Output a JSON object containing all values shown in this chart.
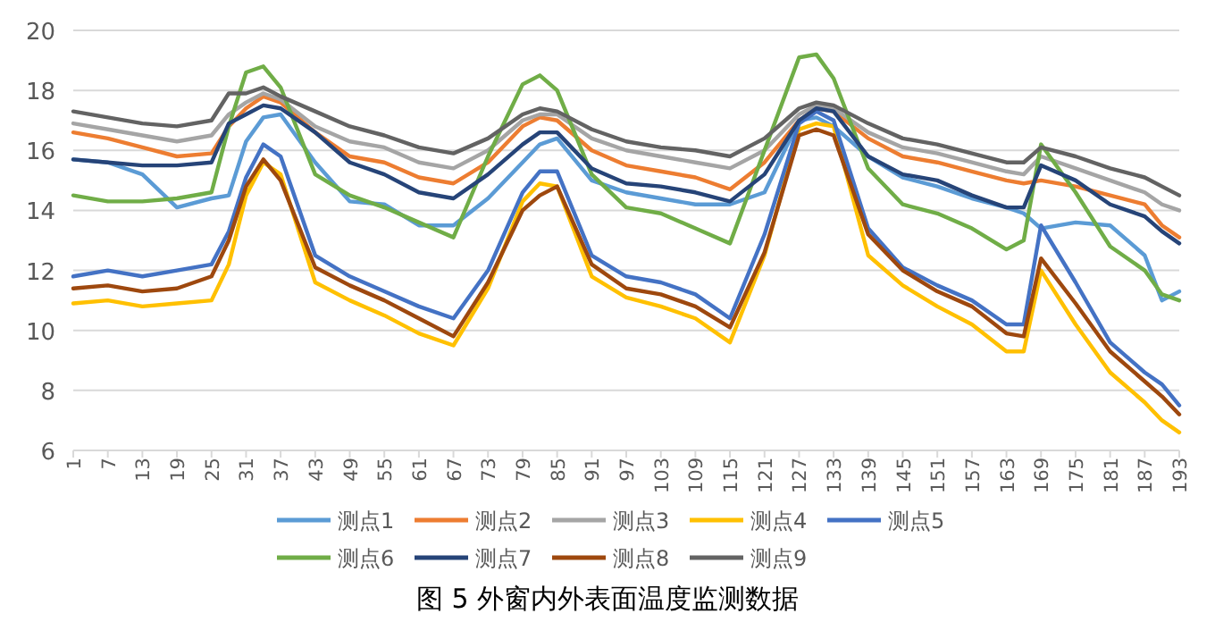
{
  "chart_data": {
    "type": "line",
    "title": "图 5   外窗内外表面温度监测数据",
    "x": [
      1,
      7,
      13,
      19,
      25,
      28,
      31,
      34,
      37,
      43,
      49,
      55,
      61,
      67,
      73,
      79,
      82,
      85,
      91,
      97,
      103,
      109,
      115,
      121,
      127,
      130,
      133,
      139,
      145,
      151,
      157,
      163,
      166,
      169,
      175,
      181,
      187,
      190,
      193
    ],
    "xlim": [
      1,
      193
    ],
    "xticks": [
      1,
      7,
      13,
      19,
      25,
      31,
      37,
      43,
      49,
      55,
      61,
      67,
      73,
      79,
      85,
      91,
      97,
      103,
      109,
      115,
      121,
      127,
      133,
      139,
      145,
      151,
      157,
      163,
      169,
      175,
      181,
      187,
      193
    ],
    "ylim": [
      6,
      20
    ],
    "yticks": [
      6,
      8,
      10,
      12,
      14,
      16,
      18,
      20
    ],
    "grid": "y",
    "legend": "bottom",
    "marker": "none",
    "line_style": "solid",
    "series": [
      {
        "name": "测点1",
        "color": "#5b9bd5",
        "values": [
          15.7,
          15.6,
          15.2,
          14.1,
          14.4,
          14.5,
          16.3,
          17.1,
          17.2,
          15.6,
          14.3,
          14.2,
          13.5,
          13.5,
          14.4,
          15.6,
          16.2,
          16.4,
          15.0,
          14.6,
          14.4,
          14.2,
          14.2,
          14.6,
          17.0,
          17.1,
          16.8,
          15.8,
          15.1,
          14.8,
          14.4,
          14.1,
          13.9,
          13.4,
          13.6,
          13.5,
          12.5,
          11.0,
          11.3
        ]
      },
      {
        "name": "测点2",
        "color": "#ed7d31",
        "values": [
          16.6,
          16.4,
          16.1,
          15.8,
          15.9,
          16.8,
          17.4,
          17.8,
          17.6,
          16.6,
          15.8,
          15.6,
          15.1,
          14.9,
          15.6,
          16.8,
          17.1,
          17.0,
          16.0,
          15.5,
          15.3,
          15.1,
          14.7,
          15.6,
          17.0,
          17.4,
          17.3,
          16.4,
          15.8,
          15.6,
          15.3,
          15.0,
          14.9,
          15.0,
          14.8,
          14.5,
          14.2,
          13.5,
          13.1
        ]
      },
      {
        "name": "测点3",
        "color": "#a5a5a5",
        "values": [
          16.9,
          16.7,
          16.5,
          16.3,
          16.5,
          17.2,
          17.6,
          17.9,
          17.7,
          16.8,
          16.3,
          16.1,
          15.6,
          15.4,
          16.0,
          17.0,
          17.2,
          17.2,
          16.4,
          16.0,
          15.8,
          15.6,
          15.4,
          16.0,
          17.2,
          17.5,
          17.4,
          16.6,
          16.1,
          15.9,
          15.6,
          15.3,
          15.2,
          15.8,
          15.4,
          15.0,
          14.6,
          14.2,
          14.0
        ]
      },
      {
        "name": "测点4",
        "color": "#ffc000",
        "values": [
          10.9,
          11.0,
          10.8,
          10.9,
          11.0,
          12.2,
          14.5,
          15.6,
          15.2,
          11.6,
          11.0,
          10.5,
          9.9,
          9.5,
          11.4,
          14.3,
          14.9,
          14.8,
          11.8,
          11.1,
          10.8,
          10.4,
          9.6,
          12.5,
          16.7,
          16.9,
          16.8,
          12.5,
          11.5,
          10.8,
          10.2,
          9.3,
          9.3,
          12.0,
          10.2,
          8.6,
          7.6,
          7.0,
          6.6
        ]
      },
      {
        "name": "测点5",
        "color": "#4472c4",
        "values": [
          11.8,
          12.0,
          11.8,
          12.0,
          12.2,
          13.3,
          15.1,
          16.2,
          15.8,
          12.5,
          11.8,
          11.3,
          10.8,
          10.4,
          12.0,
          14.6,
          15.3,
          15.3,
          12.5,
          11.8,
          11.6,
          11.2,
          10.4,
          13.2,
          16.9,
          17.3,
          17.0,
          13.4,
          12.1,
          11.5,
          11.0,
          10.2,
          10.2,
          13.5,
          11.6,
          9.6,
          8.6,
          8.2,
          7.5
        ]
      },
      {
        "name": "测点6",
        "color": "#70ad47",
        "values": [
          14.5,
          14.3,
          14.3,
          14.4,
          14.6,
          16.8,
          18.6,
          18.8,
          18.1,
          15.2,
          14.5,
          14.1,
          13.6,
          13.1,
          15.8,
          18.2,
          18.5,
          18.0,
          15.2,
          14.1,
          13.9,
          13.4,
          12.9,
          16.0,
          19.1,
          19.2,
          18.4,
          15.4,
          14.2,
          13.9,
          13.4,
          12.7,
          13.0,
          16.2,
          14.6,
          12.8,
          12.0,
          11.2,
          11.0
        ]
      },
      {
        "name": "测点7",
        "color": "#264478",
        "values": [
          15.7,
          15.6,
          15.5,
          15.5,
          15.6,
          16.9,
          17.2,
          17.5,
          17.4,
          16.6,
          15.6,
          15.2,
          14.6,
          14.4,
          15.2,
          16.2,
          16.6,
          16.6,
          15.4,
          14.9,
          14.8,
          14.6,
          14.3,
          15.2,
          17.0,
          17.4,
          17.3,
          15.8,
          15.2,
          15.0,
          14.5,
          14.1,
          14.1,
          15.5,
          15.0,
          14.2,
          13.8,
          13.3,
          12.9
        ]
      },
      {
        "name": "测点8",
        "color": "#9e480e",
        "values": [
          11.4,
          11.5,
          11.3,
          11.4,
          11.8,
          13.0,
          14.8,
          15.7,
          15.0,
          12.1,
          11.5,
          11.0,
          10.4,
          9.8,
          11.6,
          14.0,
          14.5,
          14.8,
          12.2,
          11.4,
          11.2,
          10.8,
          10.1,
          12.6,
          16.5,
          16.7,
          16.5,
          13.2,
          12.0,
          11.3,
          10.8,
          9.9,
          9.8,
          12.4,
          10.9,
          9.3,
          8.3,
          7.8,
          7.2
        ]
      },
      {
        "name": "测点9",
        "color": "#636363",
        "values": [
          17.3,
          17.1,
          16.9,
          16.8,
          17.0,
          17.9,
          17.9,
          18.1,
          17.8,
          17.3,
          16.8,
          16.5,
          16.1,
          15.9,
          16.4,
          17.2,
          17.4,
          17.3,
          16.7,
          16.3,
          16.1,
          16.0,
          15.8,
          16.4,
          17.4,
          17.6,
          17.5,
          16.9,
          16.4,
          16.2,
          15.9,
          15.6,
          15.6,
          16.1,
          15.8,
          15.4,
          15.1,
          14.8,
          14.5
        ]
      }
    ]
  }
}
